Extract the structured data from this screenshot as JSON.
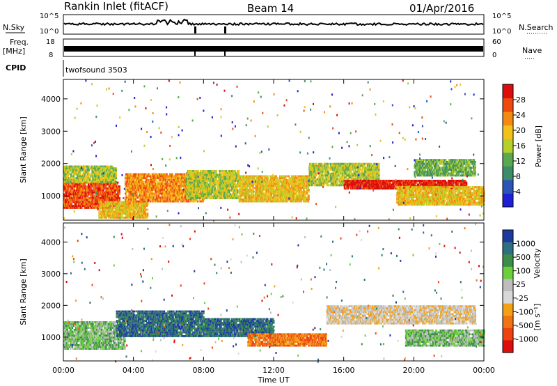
{
  "header": {
    "station": "Rankin Inlet (fitACF)",
    "beam": "Beam 14",
    "date": "01/Apr/2016"
  },
  "strip_labels": {
    "nsky": "N.Sky",
    "nsky_ticks": [
      "10^5",
      "10^0"
    ],
    "nsearch": "N.Search",
    "nsearch_ticks": [
      "10^5",
      "10^0"
    ],
    "freq": "Freq.",
    "freq_unit": "[MHz]",
    "freq_ticks": [
      "18",
      "8"
    ],
    "nave": "Nave",
    "nave_ticks": [
      "60",
      "0"
    ],
    "cpid": "CPID",
    "cpid_value": "twofsound 3503"
  },
  "colors": {
    "power_scale": [
      "#1f1fd6",
      "#2a55b5",
      "#3c8c6a",
      "#5aa84f",
      "#b6cf2a",
      "#f2c21a",
      "#f58a12",
      "#ee4a10",
      "#dd0d0d"
    ],
    "velocity_scale": [
      "#1f3a9f",
      "#2e6f82",
      "#3c8c4a",
      "#6bcf3b",
      "#bdbdbd",
      "#d8d8d8",
      "#f2a116",
      "#f07414",
      "#ee4210",
      "#dd0d0d"
    ]
  },
  "chart_data": [
    {
      "type": "heatmap",
      "panel": "power",
      "ylabel": "Slant Range [km]",
      "ylim": [
        250,
        4600
      ],
      "y_ticks": [
        "1000",
        "2000",
        "3000",
        "4000"
      ],
      "x_ticks": [
        "00:00",
        "04:00",
        "08:00",
        "12:00",
        "16:00",
        "20:00",
        "00:00"
      ],
      "colorbar_label": "Power [dB]",
      "colorbar_ticks": [
        "4",
        "8",
        "12",
        "16",
        "20",
        "24",
        "28"
      ],
      "bands": [
        {
          "t": [
            0.0,
            3.2
          ],
          "r": [
            600,
            1400
          ],
          "level": 7
        },
        {
          "t": [
            0.0,
            3.0
          ],
          "r": [
            1400,
            1900
          ],
          "level": 4
        },
        {
          "t": [
            2.0,
            4.8
          ],
          "r": [
            300,
            800
          ],
          "level": 5
        },
        {
          "t": [
            3.5,
            8.0
          ],
          "r": [
            800,
            1700
          ],
          "level": 6
        },
        {
          "t": [
            7.0,
            10.0
          ],
          "r": [
            900,
            1800
          ],
          "level": 4
        },
        {
          "t": [
            10.0,
            14.0
          ],
          "r": [
            800,
            1600
          ],
          "level": 5
        },
        {
          "t": [
            14.0,
            18.0
          ],
          "r": [
            1300,
            2000
          ],
          "level": 4
        },
        {
          "t": [
            16.0,
            23.0
          ],
          "r": [
            1200,
            1500
          ],
          "level": 8
        },
        {
          "t": [
            19.0,
            24.0
          ],
          "r": [
            700,
            1300
          ],
          "level": 5
        },
        {
          "t": [
            20.0,
            23.5
          ],
          "r": [
            1600,
            2100
          ],
          "level": 3
        }
      ]
    },
    {
      "type": "heatmap",
      "panel": "velocity",
      "ylabel": "Slant Range [km]",
      "ylim": [
        250,
        4600
      ],
      "y_ticks": [
        "1000",
        "2000",
        "3000",
        "4000"
      ],
      "x_ticks": [
        "00:00",
        "04:00",
        "08:00",
        "12:00",
        "16:00",
        "20:00",
        "00:00"
      ],
      "xlabel": "Time UT",
      "colorbar_label": "Velocity",
      "colorbar_unit": "[m s⁻¹]",
      "colorbar_ticks": [
        "1000",
        "500",
        "100",
        "25",
        "-25",
        "-100",
        "-500",
        "-1000"
      ],
      "bands": [
        {
          "t": [
            0.0,
            3.5
          ],
          "r": [
            600,
            1500
          ],
          "level": 3
        },
        {
          "t": [
            3.0,
            8.0
          ],
          "r": [
            1000,
            1800
          ],
          "level": 1
        },
        {
          "t": [
            8.0,
            12.0
          ],
          "r": [
            1000,
            1600
          ],
          "level": 1
        },
        {
          "t": [
            10.5,
            15.0
          ],
          "r": [
            700,
            1100
          ],
          "level": 7
        },
        {
          "t": [
            15.0,
            23.5
          ],
          "r": [
            1400,
            2000
          ],
          "level": 5
        },
        {
          "t": [
            19.5,
            24.0
          ],
          "r": [
            700,
            1200
          ],
          "level": 3
        }
      ]
    }
  ]
}
